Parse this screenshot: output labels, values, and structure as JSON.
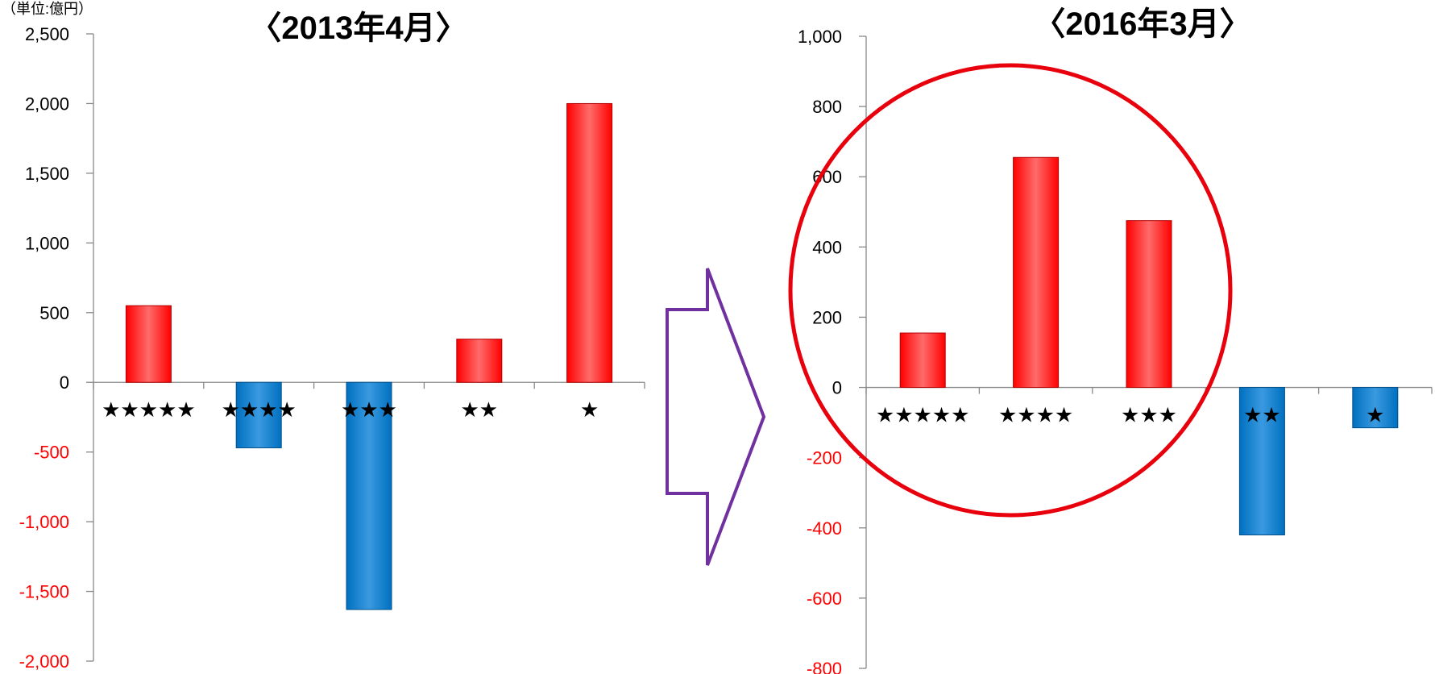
{
  "unit_label": "（単位:億円）",
  "colors": {
    "positive": "#ff0000",
    "negative": "#0070c0",
    "negative_tick": "#ff0000",
    "arrow": "#7030a0",
    "circle": "#e8000c"
  },
  "arrow_icon": "right-arrow-outline",
  "chart_data": [
    {
      "type": "bar",
      "title": "〈2013年4月〉",
      "categories": [
        "★★★★★",
        "★★★★",
        "★★★",
        "★★",
        "★"
      ],
      "values": [
        550,
        -470,
        -1630,
        310,
        2000
      ],
      "ylim": [
        -2000,
        2500
      ],
      "yticks": [
        2500,
        2000,
        1500,
        1000,
        500,
        0,
        -500,
        -1000,
        -1500,
        -2000
      ],
      "ytick_labels": [
        "2,500",
        "2,000",
        "1,500",
        "1,000",
        "500",
        "0",
        "-500",
        "-1,000",
        "-1,500",
        "-2,000"
      ],
      "xlabel": "",
      "ylabel": "",
      "grid": false
    },
    {
      "type": "bar",
      "title": "〈2016年3月〉",
      "categories": [
        "★★★★★",
        "★★★★",
        "★★★",
        "★★",
        "★"
      ],
      "values": [
        155,
        655,
        475,
        -420,
        -115
      ],
      "ylim": [
        -800,
        1000
      ],
      "yticks": [
        1000,
        800,
        600,
        400,
        200,
        0,
        -200,
        -400,
        -600,
        -800
      ],
      "ytick_labels": [
        "1,000",
        "800",
        "600",
        "400",
        "200",
        "0",
        "-200",
        "-400",
        "-600",
        "-800"
      ],
      "xlabel": "",
      "ylabel": "",
      "grid": false,
      "highlight": "circle around first three categories"
    }
  ]
}
